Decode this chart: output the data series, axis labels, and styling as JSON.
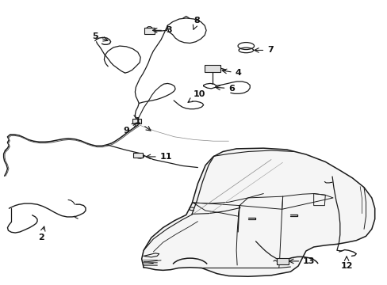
{
  "bg_color": "#ffffff",
  "line_color": "#1a1a1a",
  "label_color": "#111111",
  "figsize": [
    4.89,
    3.6
  ],
  "dpi": 100,
  "parts": {
    "1": {
      "point": [
        0.395,
        0.535
      ],
      "label": [
        0.355,
        0.575
      ]
    },
    "2": {
      "point": [
        0.115,
        0.215
      ],
      "label": [
        0.105,
        0.165
      ]
    },
    "3": {
      "point": [
        0.385,
        0.895
      ],
      "label": [
        0.435,
        0.895
      ]
    },
    "4": {
      "point": [
        0.565,
        0.755
      ],
      "label": [
        0.615,
        0.745
      ]
    },
    "5": {
      "point": [
        0.285,
        0.855
      ],
      "label": [
        0.245,
        0.875
      ]
    },
    "6": {
      "point": [
        0.548,
        0.695
      ],
      "label": [
        0.598,
        0.69
      ]
    },
    "7": {
      "point": [
        0.648,
        0.825
      ],
      "label": [
        0.698,
        0.825
      ]
    },
    "8": {
      "point": [
        0.498,
        0.895
      ],
      "label": [
        0.508,
        0.93
      ]
    },
    "9": {
      "point": [
        0.358,
        0.575
      ],
      "label": [
        0.325,
        0.542
      ]
    },
    "10": {
      "point": [
        0.478,
        0.635
      ],
      "label": [
        0.515,
        0.67
      ]
    },
    "11": {
      "point": [
        0.368,
        0.45
      ],
      "label": [
        0.428,
        0.45
      ]
    },
    "12": {
      "point": [
        0.895,
        0.11
      ],
      "label": [
        0.895,
        0.065
      ]
    },
    "13": {
      "point": [
        0.738,
        0.082
      ],
      "label": [
        0.798,
        0.082
      ]
    }
  }
}
